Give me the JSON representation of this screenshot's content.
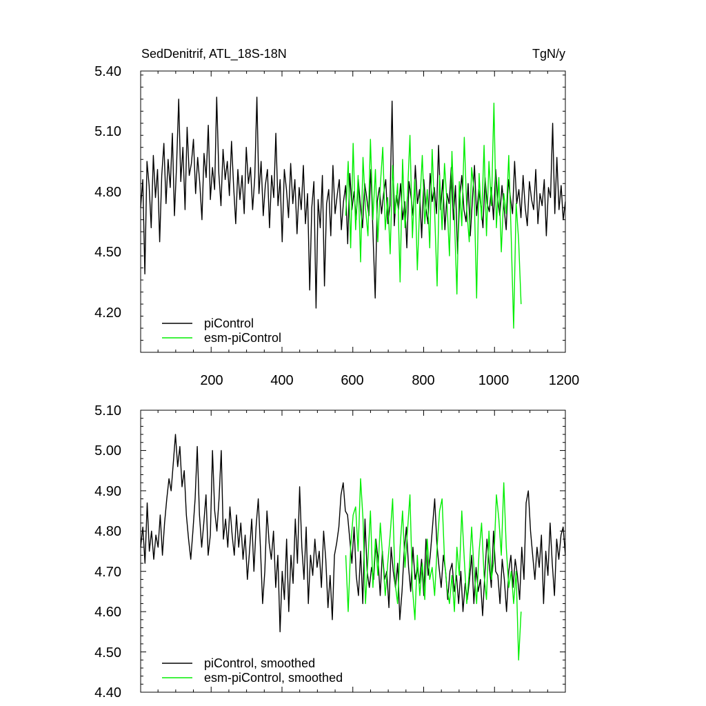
{
  "colors": {
    "series_piControl": "#000000",
    "series_esm_piControl": "#00ee00",
    "axes": "#000000",
    "background": "#ffffff"
  },
  "chart_data": [
    {
      "type": "line",
      "title": "SedDenitrif, ATL_18S-18N",
      "title_right": "TgN/y",
      "xlabel": "",
      "ylabel": "",
      "xlim": [
        1,
        1200
      ],
      "ylim": [
        4.0,
        5.4
      ],
      "y_ticks": [
        "5.40",
        "5.10",
        "4.80",
        "4.50",
        "4.20"
      ],
      "x_ticks": [
        "200",
        "400",
        "600",
        "800",
        "1000",
        "1200"
      ],
      "grid": false,
      "legend_position": "bottom-left",
      "series": [
        {
          "name": "piControl",
          "color": "#000000",
          "x_start": 1,
          "x_end": 1200,
          "values": [
            4.72,
            4.86,
            4.39,
            4.95,
            4.83,
            4.62,
            4.98,
            4.77,
            4.91,
            4.55,
            4.88,
            5.04,
            4.74,
            4.96,
            4.82,
            5.09,
            4.68,
            4.93,
            5.26,
            4.85,
            5.02,
            4.71,
            5.12,
            4.88,
            4.94,
            5.06,
            4.79,
            4.97,
            4.84,
            4.66,
            4.99,
            4.87,
            5.13,
            4.76,
            4.92,
            4.81,
            5.27,
            4.89,
            4.73,
            5.01,
            4.86,
            4.95,
            4.78,
            5.05,
            4.83,
            4.64,
            4.91,
            4.76,
            4.88,
            4.69,
            5.02,
            4.84,
            4.92,
            4.71,
            4.87,
            5.27,
            4.79,
            4.95,
            4.68,
            4.83,
            4.91,
            4.62,
            4.88,
            4.77,
            5.09,
            4.73,
            4.86,
            4.55,
            4.91,
            4.81,
            4.67,
            4.94,
            4.74,
            4.86,
            4.59,
            4.82,
            4.71,
            4.93,
            4.64,
            4.79,
            4.31,
            4.72,
            4.85,
            4.22,
            4.76,
            4.62,
            4.88,
            4.33,
            4.74,
            4.81,
            4.58,
            4.93,
            4.69,
            4.78,
            4.86,
            4.61,
            4.75,
            4.83,
            4.54,
            4.89,
            4.71,
            4.8,
            4.66,
            4.86,
            4.73,
            4.62,
            4.84,
            4.77,
            4.68,
            4.91,
            4.58,
            4.27,
            4.75,
            4.82,
            4.69,
            4.79,
            4.86,
            4.64,
            4.73,
            5.25,
            4.63,
            4.78,
            4.71,
            4.84,
            4.66,
            4.75,
            4.52,
            4.85,
            4.77,
            4.68,
            4.93,
            4.74,
            4.81,
            4.57,
            4.86,
            4.72,
            4.64,
            4.89,
            4.75,
            4.82,
            4.69,
            5.03,
            4.71,
            4.86,
            4.61,
            4.79,
            4.74,
            4.92,
            4.66,
            4.83,
            4.49,
            4.77,
            4.88,
            4.71,
            4.65,
            4.84,
            4.58,
            4.76,
            4.93,
            4.68,
            4.81,
            4.73,
            4.62,
            4.87,
            4.74,
            4.7,
            4.82,
            4.66,
            4.91,
            4.76,
            4.68,
            4.83,
            4.72,
            4.61,
            4.86,
            4.77,
            4.69,
            4.95,
            4.74,
            4.81,
            4.67,
            4.88,
            4.72,
            4.63,
            4.85,
            4.76,
            4.71,
            4.91,
            4.64,
            4.79,
            4.73,
            4.86,
            4.58,
            4.82,
            4.77,
            5.14,
            4.69,
            4.97,
            4.71,
            4.83,
            4.66,
            4.75
          ]
        },
        {
          "name": "esm-piControl",
          "color": "#00ee00",
          "x_start": 580,
          "x_end": 1075,
          "values": [
            4.68,
            4.95,
            4.52,
            5.04,
            4.61,
            4.88,
            4.45,
            4.97,
            4.72,
            4.58,
            5.06,
            4.66,
            4.91,
            4.55,
            4.83,
            5.02,
            4.61,
            4.77,
            4.49,
            4.93,
            4.69,
            4.84,
            4.35,
            4.96,
            4.62,
            4.78,
            5.08,
            4.57,
            4.86,
            4.41,
            4.74,
            4.98,
            4.64,
            4.81,
            4.52,
            5.01,
            4.7,
            4.33,
            4.88,
            4.61,
            4.94,
            4.75,
            4.48,
            5.0,
            4.67,
            4.29,
            4.85,
            4.63,
            5.07,
            4.71,
            4.55,
            4.92,
            4.8,
            4.27,
            4.89,
            4.66,
            5.03,
            4.58,
            4.95,
            4.73,
            5.24,
            4.62,
            4.87,
            4.5,
            4.79,
            4.69,
            4.98,
            4.57,
            4.12,
            4.74,
            4.56,
            4.24
          ]
        }
      ]
    },
    {
      "type": "line",
      "title": "",
      "xlabel": "",
      "ylabel": "",
      "xlim": [
        1,
        1200
      ],
      "ylim": [
        4.4,
        5.1
      ],
      "y_ticks": [
        "5.10",
        "5.00",
        "4.90",
        "4.80",
        "4.70",
        "4.60",
        "4.50",
        "4.40"
      ],
      "grid": false,
      "legend_position": "bottom-left",
      "series": [
        {
          "name": "piControl, smoothed",
          "color": "#000000",
          "x_start": 1,
          "x_end": 1200,
          "values": [
            4.76,
            4.81,
            4.72,
            4.87,
            4.75,
            4.8,
            4.73,
            4.79,
            4.76,
            4.84,
            4.74,
            4.82,
            4.88,
            4.93,
            4.9,
            4.97,
            5.04,
            4.96,
            5.01,
            4.91,
            4.95,
            4.84,
            4.78,
            4.73,
            4.8,
            4.88,
            5.01,
            4.84,
            4.76,
            4.82,
            4.89,
            4.74,
            4.79,
            5.0,
            4.85,
            4.8,
            4.88,
            5.0,
            4.78,
            4.83,
            4.76,
            4.86,
            4.79,
            4.74,
            4.84,
            4.76,
            4.82,
            4.73,
            4.79,
            4.68,
            4.75,
            4.83,
            4.7,
            4.81,
            4.88,
            4.76,
            4.62,
            4.7,
            4.85,
            4.77,
            4.73,
            4.8,
            4.66,
            4.74,
            4.55,
            4.7,
            4.63,
            4.78,
            4.6,
            4.74,
            4.67,
            4.83,
            4.72,
            4.91,
            4.76,
            4.68,
            4.81,
            4.62,
            4.74,
            4.69,
            4.78,
            4.71,
            4.75,
            4.66,
            4.8,
            4.73,
            4.61,
            4.69,
            4.58,
            4.74,
            4.77,
            4.81,
            4.89,
            4.92,
            4.85,
            4.84,
            4.78,
            4.72,
            4.81,
            4.69,
            4.64,
            4.75,
            4.62,
            4.83,
            4.7,
            4.66,
            4.71,
            4.68,
            4.78,
            4.73,
            4.64,
            4.75,
            4.68,
            4.7,
            4.61,
            4.76,
            4.7,
            4.66,
            4.72,
            4.58,
            4.65,
            4.75,
            4.81,
            4.71,
            4.65,
            4.76,
            4.68,
            4.71,
            4.67,
            4.73,
            4.64,
            4.78,
            4.69,
            4.74,
            4.81,
            4.88,
            4.77,
            4.71,
            4.66,
            4.74,
            4.7,
            4.63,
            4.7,
            4.72,
            4.65,
            4.69,
            4.62,
            4.7,
            4.6,
            4.67,
            4.63,
            4.68,
            4.74,
            4.62,
            4.71,
            4.65,
            4.68,
            4.59,
            4.69,
            4.78,
            4.72,
            4.66,
            4.8,
            4.7,
            4.69,
            4.62,
            4.73,
            4.68,
            4.6,
            4.7,
            4.74,
            4.66,
            4.73,
            4.69,
            4.63,
            4.76,
            4.68,
            4.87,
            4.9,
            4.8,
            4.74,
            4.68,
            4.76,
            4.71,
            4.79,
            4.62,
            4.75,
            4.69,
            4.82,
            4.72,
            4.64,
            4.78,
            4.73,
            4.79,
            4.81,
            4.74
          ]
        },
        {
          "name": "esm-piControl, smoothed",
          "color": "#00ee00",
          "x_start": 580,
          "x_end": 1075,
          "values": [
            4.74,
            4.6,
            4.76,
            4.84,
            4.86,
            4.75,
            4.93,
            4.83,
            4.62,
            4.73,
            4.85,
            4.66,
            4.78,
            4.69,
            4.82,
            4.73,
            4.64,
            4.72,
            4.79,
            4.88,
            4.67,
            4.62,
            4.76,
            4.85,
            4.71,
            4.8,
            4.89,
            4.66,
            4.58,
            4.74,
            4.64,
            4.72,
            4.63,
            4.78,
            4.68,
            4.71,
            4.64,
            4.76,
            4.85,
            4.88,
            4.73,
            4.66,
            4.62,
            4.69,
            4.6,
            4.76,
            4.69,
            4.85,
            4.73,
            4.62,
            4.7,
            4.81,
            4.7,
            4.62,
            4.75,
            4.82,
            4.69,
            4.63,
            4.8,
            4.68,
            4.73,
            4.89,
            4.83,
            4.74,
            4.92,
            4.76,
            4.66,
            4.7,
            4.62,
            4.7,
            4.48,
            4.6
          ]
        }
      ]
    }
  ]
}
